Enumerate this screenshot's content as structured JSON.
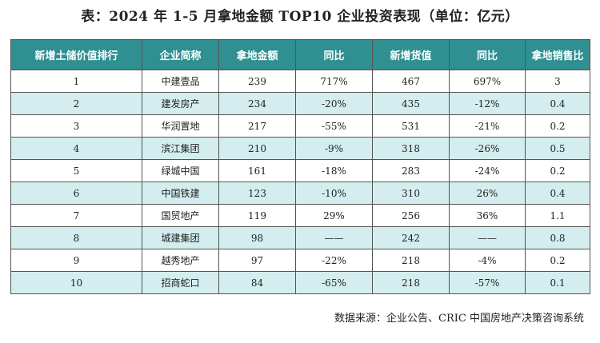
{
  "title": "表：2024 年 1-5 月拿地金额 TOP10 企业投资表现（单位：亿元）",
  "table": {
    "headers": [
      "新增土储价值排行",
      "企业简称",
      "拿地金额",
      "同比",
      "新增货值",
      "同比",
      "拿地销售比"
    ],
    "rows": [
      [
        "1",
        "中建壹品",
        "239",
        "717%",
        "467",
        "697%",
        "3"
      ],
      [
        "2",
        "建发房产",
        "234",
        "-20%",
        "435",
        "-12%",
        "0.4"
      ],
      [
        "3",
        "华润置地",
        "217",
        "-55%",
        "531",
        "-21%",
        "0.2"
      ],
      [
        "4",
        "滨江集团",
        "210",
        "-9%",
        "318",
        "-26%",
        "0.5"
      ],
      [
        "5",
        "绿城中国",
        "161",
        "-18%",
        "283",
        "-24%",
        "0.2"
      ],
      [
        "6",
        "中国铁建",
        "123",
        "-10%",
        "310",
        "26%",
        "0.4"
      ],
      [
        "7",
        "国贸地产",
        "119",
        "29%",
        "256",
        "36%",
        "1.1"
      ],
      [
        "8",
        "城建集团",
        "98",
        "——",
        "242",
        "——",
        "0.8"
      ],
      [
        "9",
        "越秀地产",
        "97",
        "-22%",
        "218",
        "-4%",
        "0.2"
      ],
      [
        "10",
        "招商蛇口",
        "84",
        "-65%",
        "218",
        "-57%",
        "0.1"
      ]
    ]
  },
  "source": "数据来源：企业公告、CRIC 中国房地产决策咨询系统",
  "colors": {
    "header_bg": "#2f8f91",
    "alt_row_bg": "#d4edee",
    "border": "#555555"
  }
}
